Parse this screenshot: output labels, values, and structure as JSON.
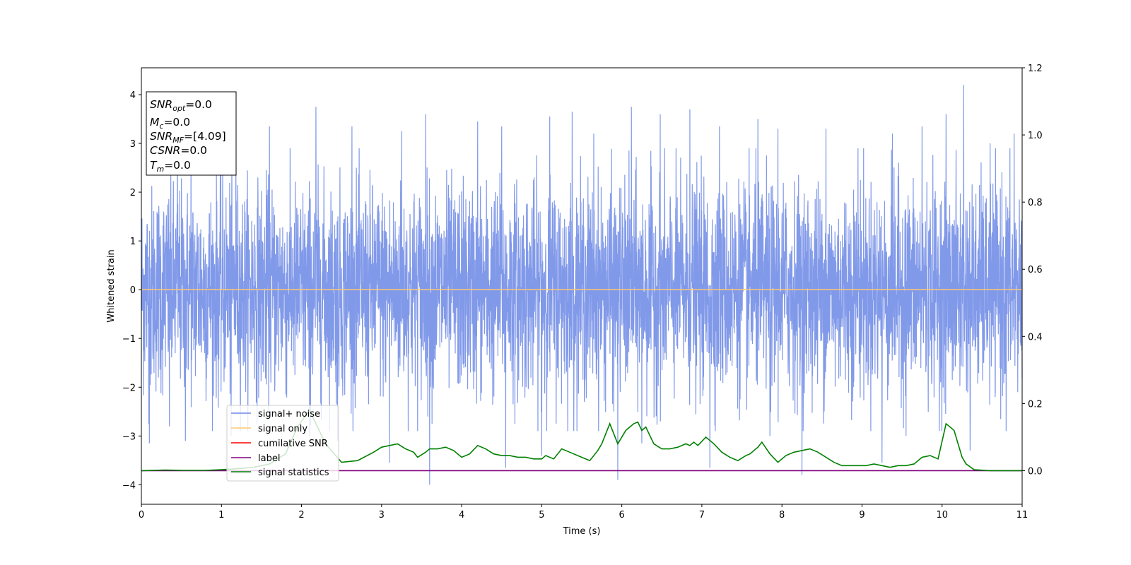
{
  "chart_data": {
    "type": "line",
    "xlabel": "Time (s)",
    "ylabel": "Whitened strain",
    "xlim": [
      0,
      11
    ],
    "ylim": [
      -4.4,
      4.55
    ],
    "y2lim": [
      -0.1,
      1.2
    ],
    "x_ticks": [
      "0",
      "1",
      "2",
      "3",
      "4",
      "5",
      "6",
      "7",
      "8",
      "9",
      "10",
      "11"
    ],
    "y_ticks": [
      "4",
      "3",
      "2",
      "1",
      "0",
      "−1",
      "−2",
      "−3",
      "−4"
    ],
    "y2_ticks": [
      "1.2",
      "1.0",
      "0.8",
      "0.6",
      "0.4",
      "0.2",
      "0.0"
    ],
    "grid": false,
    "legend_position": "lower-left",
    "info_box": {
      "snr_opt": {
        "base": "SNR",
        "sub": "opt",
        "value": "=0.0"
      },
      "mc": {
        "base": "M",
        "sub": "c",
        "value": "=0.0"
      },
      "snr_mf": {
        "base": "SNR",
        "sub": "MF",
        "value": "=[4.09]"
      },
      "csnr": {
        "base": "CSNR",
        "value": "=0.0"
      },
      "tm": {
        "base": "T",
        "sub": "m",
        "value": "=0.0"
      }
    },
    "series": [
      {
        "name": "signal+ noise",
        "color": "#7a94e8",
        "axis": "left",
        "description_values": "dense noise trace, mostly within ±2.5, peaks to 4.2",
        "spikes": [
          [
            0.45,
            3.6
          ],
          [
            0.62,
            3.1
          ],
          [
            1.18,
            3.75
          ],
          [
            1.6,
            3.35
          ],
          [
            2.18,
            3.75
          ],
          [
            2.63,
            3.35
          ],
          [
            3.25,
            3.25
          ],
          [
            3.55,
            3.6
          ],
          [
            3.6,
            4.0
          ],
          [
            4.2,
            3.45
          ],
          [
            4.5,
            3.35
          ],
          [
            5.1,
            3.55
          ],
          [
            5.38,
            3.65
          ],
          [
            5.65,
            3.2
          ],
          [
            6.12,
            3.75
          ],
          [
            6.48,
            3.6
          ],
          [
            6.85,
            3.7
          ],
          [
            7.22,
            3.35
          ],
          [
            7.7,
            3.5
          ],
          [
            7.95,
            3.3
          ],
          [
            8.25,
            3.45
          ],
          [
            8.55,
            3.3
          ],
          [
            8.95,
            2.9
          ],
          [
            9.38,
            3.2
          ],
          [
            9.75,
            3.35
          ],
          [
            10.05,
            3.6
          ],
          [
            10.27,
            4.2
          ],
          [
            10.6,
            3.0
          ],
          [
            10.9,
            3.2
          ],
          [
            0.1,
            -3.15
          ],
          [
            0.35,
            -2.8
          ],
          [
            0.55,
            -3.1
          ],
          [
            1.12,
            -3.0
          ],
          [
            2.1,
            -3.0
          ],
          [
            2.45,
            -3.1
          ],
          [
            3.1,
            -3.55
          ],
          [
            3.6,
            -4.0
          ],
          [
            4.55,
            -3.65
          ],
          [
            5.0,
            -3.4
          ],
          [
            5.95,
            -3.9
          ],
          [
            6.25,
            -3.15
          ],
          [
            7.1,
            -3.65
          ],
          [
            7.85,
            -3.0
          ],
          [
            8.25,
            -3.8
          ],
          [
            9.25,
            -3.55
          ],
          [
            9.55,
            -3.0
          ],
          [
            10.35,
            -3.3
          ],
          [
            10.8,
            -2.9
          ]
        ]
      },
      {
        "name": "signal only",
        "color": "#ffc870",
        "axis": "left",
        "x": [
          0,
          11
        ],
        "values": [
          0,
          0
        ]
      },
      {
        "name": "cumilative SNR",
        "color": "#ff0000",
        "axis": "right",
        "x": [
          0,
          11
        ],
        "values": [
          0,
          0
        ]
      },
      {
        "name": "label",
        "color": "#800080",
        "axis": "right",
        "x": [
          0,
          11
        ],
        "values": [
          0,
          0
        ]
      },
      {
        "name": "signal statistics",
        "color": "#008000",
        "axis": "right",
        "x": [
          0,
          0.3,
          0.5,
          0.8,
          1.0,
          1.2,
          1.4,
          1.6,
          1.8,
          1.95,
          2.1,
          2.3,
          2.5,
          2.7,
          2.9,
          3.0,
          3.1,
          3.2,
          3.3,
          3.4,
          3.45,
          3.55,
          3.6,
          3.7,
          3.8,
          3.9,
          4.0,
          4.1,
          4.2,
          4.3,
          4.4,
          4.5,
          4.6,
          4.7,
          4.8,
          4.9,
          5.0,
          5.05,
          5.15,
          5.25,
          5.35,
          5.5,
          5.6,
          5.7,
          5.75,
          5.85,
          5.95,
          6.05,
          6.15,
          6.2,
          6.25,
          6.3,
          6.4,
          6.5,
          6.6,
          6.7,
          6.8,
          6.85,
          6.9,
          6.95,
          7.05,
          7.15,
          7.25,
          7.35,
          7.45,
          7.55,
          7.6,
          7.7,
          7.75,
          7.85,
          7.95,
          8.05,
          8.15,
          8.25,
          8.35,
          8.45,
          8.55,
          8.65,
          8.75,
          8.85,
          8.95,
          9.05,
          9.15,
          9.25,
          9.35,
          9.45,
          9.55,
          9.65,
          9.75,
          9.85,
          9.95,
          10.05,
          10.15,
          10.25,
          10.3,
          10.4,
          10.6,
          11.0
        ],
        "values": [
          0.0,
          0.002,
          0.001,
          0.001,
          0.003,
          0.006,
          0.01,
          0.02,
          0.05,
          0.13,
          0.18,
          0.08,
          0.025,
          0.03,
          0.055,
          0.07,
          0.075,
          0.08,
          0.065,
          0.055,
          0.04,
          0.055,
          0.065,
          0.065,
          0.07,
          0.06,
          0.04,
          0.05,
          0.075,
          0.065,
          0.05,
          0.045,
          0.045,
          0.04,
          0.04,
          0.035,
          0.035,
          0.045,
          0.035,
          0.065,
          0.055,
          0.04,
          0.03,
          0.06,
          0.08,
          0.14,
          0.08,
          0.12,
          0.14,
          0.145,
          0.12,
          0.13,
          0.08,
          0.065,
          0.065,
          0.07,
          0.08,
          0.075,
          0.085,
          0.075,
          0.1,
          0.08,
          0.055,
          0.04,
          0.03,
          0.045,
          0.05,
          0.07,
          0.085,
          0.05,
          0.025,
          0.045,
          0.055,
          0.06,
          0.065,
          0.055,
          0.04,
          0.025,
          0.015,
          0.015,
          0.015,
          0.015,
          0.02,
          0.015,
          0.01,
          0.015,
          0.015,
          0.02,
          0.04,
          0.045,
          0.035,
          0.14,
          0.12,
          0.04,
          0.02,
          0.003,
          0.0,
          0.0
        ]
      }
    ]
  }
}
